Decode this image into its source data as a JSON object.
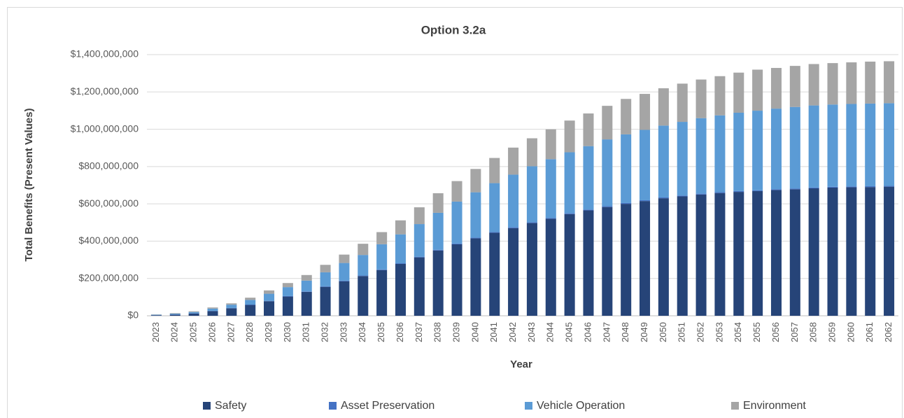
{
  "chart_data": {
    "type": "bar",
    "stacked": true,
    "title": "Option 3.2a",
    "x_label": "Year",
    "y_label": "Total Benefits (Present Values)",
    "categories": [
      "2023",
      "2024",
      "2025",
      "2026",
      "2027",
      "2028",
      "2029",
      "2030",
      "2031",
      "2032",
      "2033",
      "2034",
      "2035",
      "2036",
      "2037",
      "2038",
      "2039",
      "2040",
      "2041",
      "2042",
      "2043",
      "2044",
      "2045",
      "2046",
      "2047",
      "2048",
      "2049",
      "2050",
      "2051",
      "2052",
      "2053",
      "2054",
      "2055",
      "2056",
      "2057",
      "2058",
      "2059",
      "2060",
      "2061",
      "2062"
    ],
    "series": [
      {
        "name": "Safety",
        "color": "#264478",
        "values": [
          3000000,
          6000000,
          12000000,
          25000000,
          40000000,
          58000000,
          78000000,
          103000000,
          128000000,
          155000000,
          185000000,
          213000000,
          245000000,
          278000000,
          313000000,
          350000000,
          383000000,
          415000000,
          445000000,
          470000000,
          497000000,
          520000000,
          545000000,
          565000000,
          583000000,
          600000000,
          615000000,
          630000000,
          640000000,
          650000000,
          658000000,
          664000000,
          668000000,
          674000000,
          678000000,
          683000000,
          687000000,
          689000000,
          690000000,
          692000000
        ]
      },
      {
        "name": "Asset Preservation",
        "color": "#4472c4",
        "values": [
          500000,
          1000000,
          1000000,
          1500000,
          1500000,
          2000000,
          2000000,
          2500000,
          2500000,
          3000000,
          3000000,
          3000000,
          3500000,
          3500000,
          3500000,
          4000000,
          4000000,
          4000000,
          4000000,
          4500000,
          4500000,
          4500000,
          4500000,
          4500000,
          4500000,
          4500000,
          4500000,
          4500000,
          4500000,
          4500000,
          4500000,
          4500000,
          4500000,
          4500000,
          4500000,
          4500000,
          4500000,
          4500000,
          4500000,
          4500000
        ]
      },
      {
        "name": "Vehicle Operation",
        "color": "#5b9bd5",
        "values": [
          2000000,
          4000000,
          7000000,
          12000000,
          18000000,
          25000000,
          38000000,
          48000000,
          58000000,
          75000000,
          95000000,
          110000000,
          135000000,
          155000000,
          175000000,
          198000000,
          225000000,
          243000000,
          262000000,
          282000000,
          300000000,
          315000000,
          327000000,
          340000000,
          358000000,
          368000000,
          377000000,
          385000000,
          395000000,
          405000000,
          412000000,
          420000000,
          427000000,
          432000000,
          437000000,
          440000000,
          441000000,
          442000000,
          443000000,
          443000000
        ]
      },
      {
        "name": "Environment",
        "color": "#a5a5a5",
        "values": [
          1500000,
          3000000,
          4000000,
          6000000,
          7000000,
          12000000,
          18000000,
          22000000,
          30000000,
          40000000,
          45000000,
          60000000,
          65000000,
          75000000,
          90000000,
          105000000,
          110000000,
          125000000,
          135000000,
          145000000,
          150000000,
          160000000,
          170000000,
          175000000,
          180000000,
          190000000,
          193000000,
          200000000,
          205000000,
          207000000,
          210000000,
          215000000,
          220000000,
          218000000,
          220000000,
          222000000,
          222000000,
          223000000,
          225000000,
          225000000
        ]
      }
    ],
    "ylim": [
      0,
      1400000000
    ],
    "yticks": [
      {
        "value": 0,
        "label": "$0"
      },
      {
        "value": 200000000,
        "label": "$200,000,000"
      },
      {
        "value": 400000000,
        "label": "$400,000,000"
      },
      {
        "value": 600000000,
        "label": "$600,000,000"
      },
      {
        "value": 800000000,
        "label": "$800,000,000"
      },
      {
        "value": 1000000000,
        "label": "$1,000,000,000"
      },
      {
        "value": 1200000000,
        "label": "$1,200,000,000"
      },
      {
        "value": 1400000000,
        "label": "$1,400,000,000"
      }
    ],
    "grid": true,
    "legend": "bottom"
  }
}
